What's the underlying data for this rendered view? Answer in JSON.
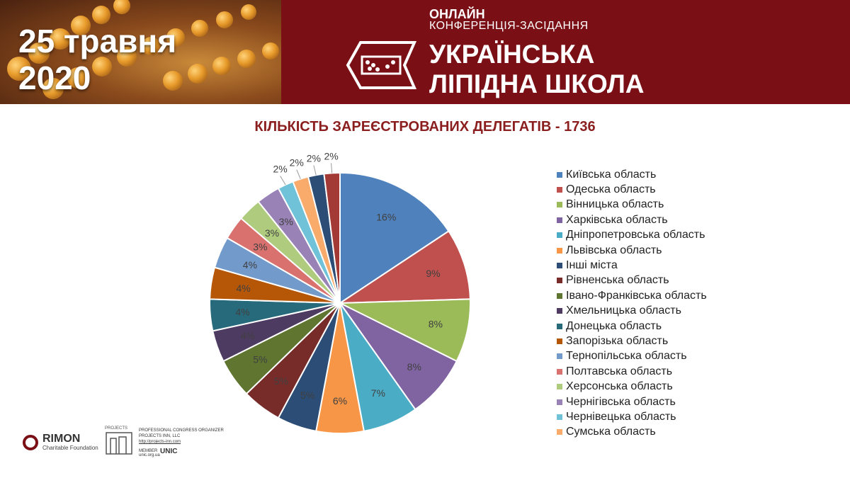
{
  "header": {
    "date_line1": "25 травня",
    "date_line2": "2020",
    "online": "ОНЛАЙН",
    "conference": "КОНФЕРЕНЦІЯ-ЗАСІДАННЯ",
    "school_line1": "УКРАЇНСЬКА",
    "school_line2": "ЛІПІДНА ШКОЛА"
  },
  "footer": {
    "rimon_name": "RIMON",
    "rimon_sub": "Charitable Foundation",
    "pco_line1": "PROFESSIONAL CONGRESS ORGANIZER",
    "pco_line2": "PROJECTS INN, LLC",
    "pco_line3": "http://projects-inn.com",
    "member": "MEMBER",
    "member_url": "unic.org.ua",
    "unic": "UNIC",
    "projects": "PROJECTS"
  },
  "chart_data": {
    "type": "pie",
    "title": "КІЛЬКІСТЬ ЗАРЕЄСТРОВАНИХ ДЕЛЕГАТІВ - 1736",
    "legend_position": "right",
    "slices": [
      {
        "name": "Київська область",
        "value": 16,
        "label": "16%",
        "color": "#4f81bd"
      },
      {
        "name": "Одеська область",
        "value": 9,
        "label": "9%",
        "color": "#c0504d"
      },
      {
        "name": "Вінницька область",
        "value": 8,
        "label": "8%",
        "color": "#9bbb59"
      },
      {
        "name": "Харківська область",
        "value": 8,
        "label": "8%",
        "color": "#8064a2"
      },
      {
        "name": "Дніпропетровська область",
        "value": 7,
        "label": "7%",
        "color": "#4bacc6"
      },
      {
        "name": "Львівська область",
        "value": 6,
        "label": "6%",
        "color": "#f79646"
      },
      {
        "name": "Інші міста",
        "value": 5,
        "label": "5%",
        "color": "#2c4d75"
      },
      {
        "name": "Рівненська область",
        "value": 5,
        "label": "5%",
        "color": "#772c2a"
      },
      {
        "name": "Івано-Франківська область",
        "value": 5,
        "label": "5%",
        "color": "#5f7530"
      },
      {
        "name": "Хмельницька область",
        "value": 4,
        "label": "4%",
        "color": "#4d3b62"
      },
      {
        "name": "Донецька область",
        "value": 4,
        "label": "4%",
        "color": "#276a7c"
      },
      {
        "name": "Запорізька область",
        "value": 4,
        "label": "4%",
        "color": "#b65708"
      },
      {
        "name": "Тернопільська область",
        "value": 4,
        "label": "4%",
        "color": "#729aca"
      },
      {
        "name": "Полтавська область",
        "value": 3,
        "label": "3%",
        "color": "#d9716e"
      },
      {
        "name": "Херсонська область",
        "value": 3,
        "label": "3%",
        "color": "#afcb7d"
      },
      {
        "name": "Чернігівська область",
        "value": 3,
        "label": "3%",
        "color": "#9982b5"
      },
      {
        "name": "Чернівецька область",
        "value": 2,
        "label": "2%",
        "color": "#6fc2d7"
      },
      {
        "name": "Сумська область",
        "value": 2,
        "label": "2%",
        "color": "#f9ab6b"
      },
      {
        "name": "",
        "value": 2,
        "label": "2%",
        "color": "#2c4d75"
      },
      {
        "name": "",
        "value": 2,
        "label": "2%",
        "color": "#a33a36"
      }
    ]
  }
}
